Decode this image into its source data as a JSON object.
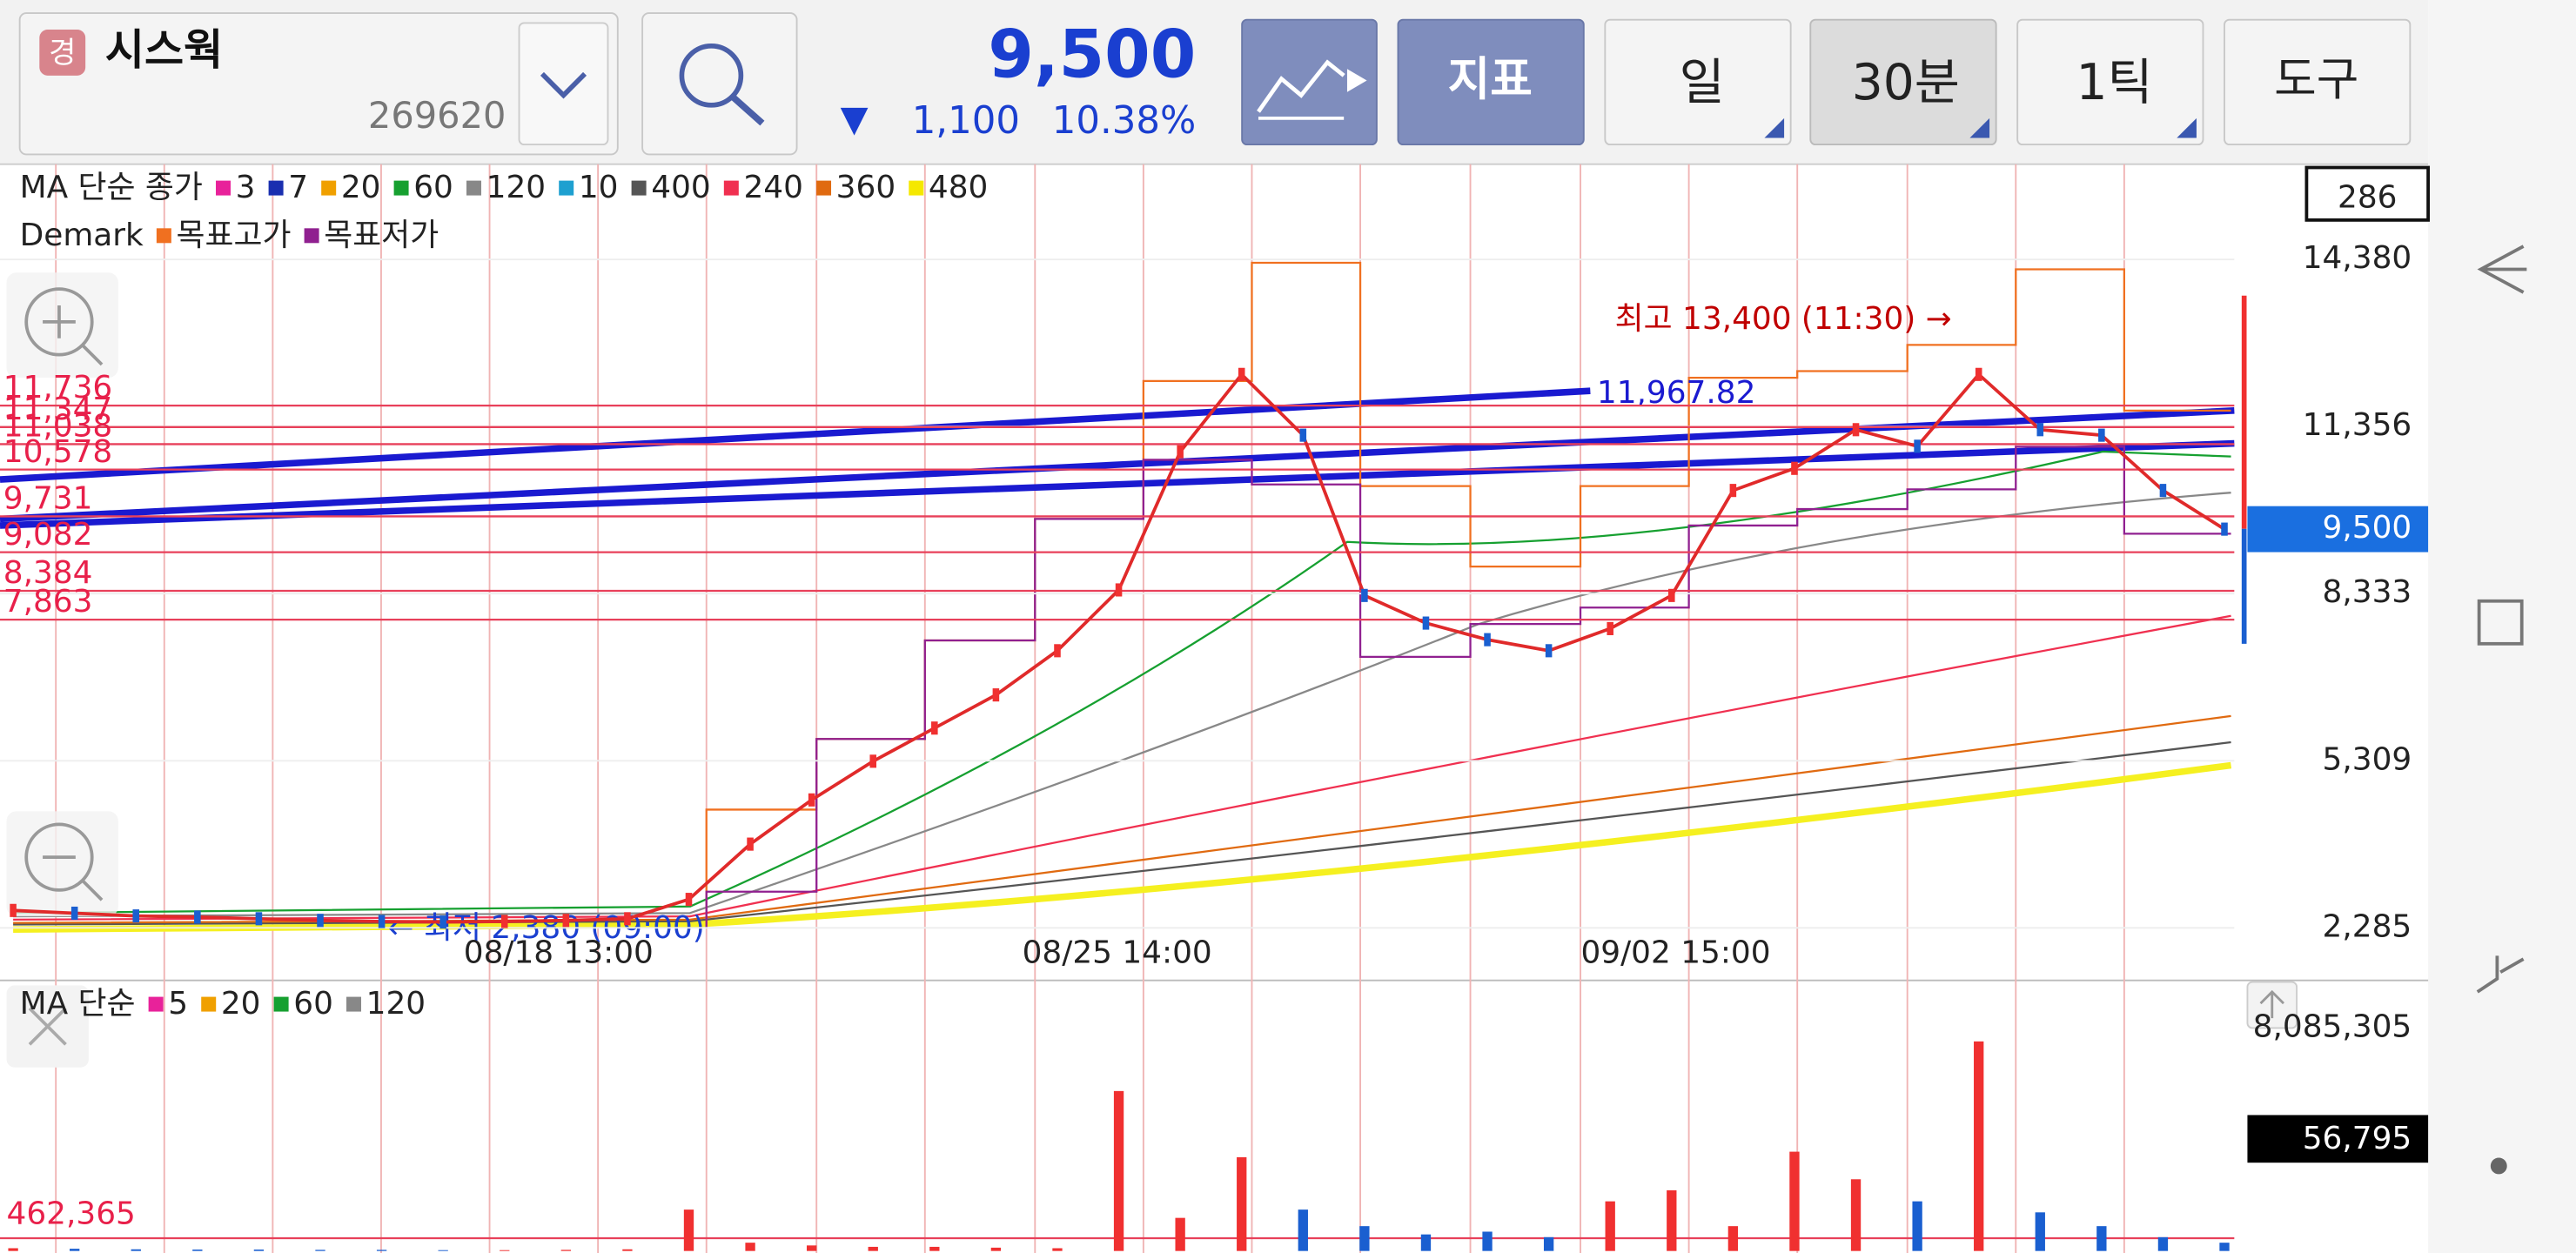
{
  "header": {
    "badge": "경",
    "name": "시스웍",
    "code": "269620",
    "price": "9,500",
    "change_arrow": "▼",
    "change": "1,100",
    "change_pct": "10.38%",
    "indicator_button": "지표",
    "period_buttons": [
      "일",
      "30분",
      "1틱"
    ],
    "tools_button": "도구"
  },
  "price_chart": {
    "ma_title": "MA 단순 종가",
    "ma": [
      {
        "name": "3",
        "color": "#e8229a"
      },
      {
        "name": "7",
        "color": "#1a2fb0"
      },
      {
        "name": "20",
        "color": "#f0a000"
      },
      {
        "name": "60",
        "color": "#16a030"
      },
      {
        "name": "120",
        "color": "#888888"
      },
      {
        "name": "10",
        "color": "#1ea0d0"
      },
      {
        "name": "400",
        "color": "#555555"
      },
      {
        "name": "240",
        "color": "#f03050"
      },
      {
        "name": "360",
        "color": "#e06a10"
      },
      {
        "name": "480",
        "color": "#f5e800"
      }
    ],
    "demark_title": "Demark",
    "demark": [
      {
        "name": "목표고가",
        "color": "#f07020"
      },
      {
        "name": "목표저가",
        "color": "#902090"
      }
    ],
    "top_box": "286",
    "yticks": [
      {
        "value": 14380,
        "label": "14,380"
      },
      {
        "value": 11356,
        "label": "11,356"
      },
      {
        "value": 8333,
        "label": "8,333"
      },
      {
        "value": 5309,
        "label": "5,309"
      },
      {
        "value": 2285,
        "label": "2,285"
      }
    ],
    "current_price": {
      "value": 9500,
      "label": "9,500"
    },
    "x_labels": [
      "08/18 13:00",
      "08/25 14:00",
      "09/02 15:00"
    ],
    "levels": [
      {
        "value": 11736,
        "label": "11,736"
      },
      {
        "value": 11347,
        "label": "11,347"
      },
      {
        "value": 11038,
        "label": "11,038"
      },
      {
        "value": 10578,
        "label": "10,578"
      },
      {
        "value": 9731,
        "label": "9,731"
      },
      {
        "value": 9082,
        "label": "9,082"
      },
      {
        "value": 8384,
        "label": "8,384"
      },
      {
        "value": 7863,
        "label": "7,863"
      }
    ],
    "high_note": "최고 13,400 (11:30) →",
    "low_note": "← 최저 2,380 (09:00)",
    "trend_label": "11,967.82",
    "close": [
      2600,
      2550,
      2500,
      2480,
      2450,
      2420,
      2400,
      2390,
      2400,
      2420,
      2450,
      2800,
      3800,
      4600,
      5300,
      5900,
      6500,
      7300,
      8400,
      10900,
      12300,
      11200,
      8300,
      7800,
      7500,
      7300,
      7700,
      8300,
      10200,
      10600,
      11300,
      11000,
      12300,
      11300,
      11200,
      10200,
      9500
    ]
  },
  "volume_chart": {
    "ma_title": "MA 단순",
    "ma": [
      {
        "name": "5",
        "color": "#e8229a"
      },
      {
        "name": "20",
        "color": "#f0a000"
      },
      {
        "name": "60",
        "color": "#16a030"
      },
      {
        "name": "120",
        "color": "#888888"
      }
    ],
    "top_tick": {
      "value": 8085305,
      "label": "8,085,305"
    },
    "level": {
      "value": 462365,
      "label": "462,365"
    },
    "current_label": "56,795",
    "volumes": [
      100000,
      80000,
      60000,
      50000,
      50000,
      40000,
      40000,
      30000,
      30000,
      40000,
      60000,
      1500000,
      300000,
      200000,
      150000,
      150000,
      120000,
      100000,
      5800000,
      1200000,
      3400000,
      1500000,
      900000,
      600000,
      700000,
      500000,
      1800000,
      2200000,
      900000,
      3600000,
      2600000,
      1800000,
      7600000,
      1400000,
      900000,
      500000,
      300000
    ]
  }
}
